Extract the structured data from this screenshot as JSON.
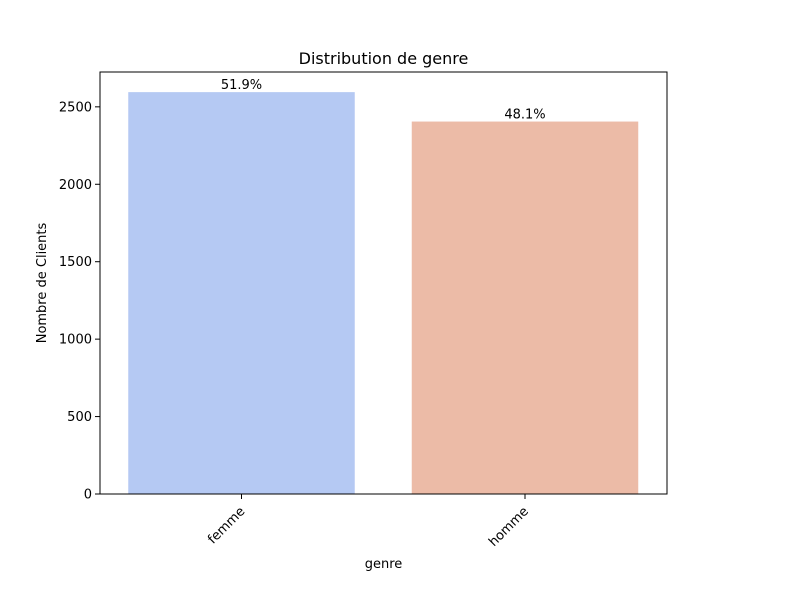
{
  "chart_data": {
    "type": "bar",
    "title": "Distribution de genre",
    "xlabel": "genre",
    "ylabel": "Nombre de Clients",
    "categories": [
      "femme",
      "homme"
    ],
    "values": [
      2595,
      2405
    ],
    "data_labels": [
      "51.9%",
      "48.1%"
    ],
    "colors": [
      "#b5c9f3",
      "#ecbba7"
    ],
    "ylim": [
      0,
      2725
    ],
    "yticks": [
      0,
      500,
      1000,
      1500,
      2000,
      2500
    ],
    "xtick_rotation": 45,
    "grid": false,
    "legend": "none"
  }
}
